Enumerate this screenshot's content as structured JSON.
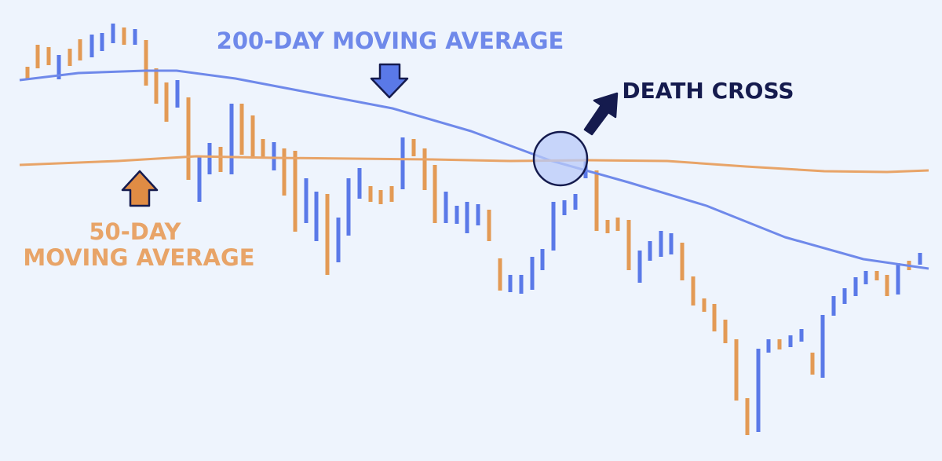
{
  "chart_data": {
    "type": "bar",
    "chart_style": "price bars with moving average lines",
    "title": "",
    "xlabel": "",
    "ylabel": "",
    "axes_visible": false,
    "grid": false,
    "y_range": [
      0,
      587
    ],
    "colors": {
      "up": "#5a79e8",
      "down": "#e39a55",
      "ma_200": "#6f89ea",
      "ma_50": "#e8a468",
      "death_label": "#151b4e",
      "circle_fill": "#b9cbf8",
      "arrow_200": "#5a79e8",
      "arrow_50": "#e08c44",
      "arrow_death": "#151b4e"
    },
    "bars": [
      {
        "x": 35,
        "high": 502,
        "low": 485,
        "dir": "down"
      },
      {
        "x": 48,
        "high": 530,
        "low": 500,
        "dir": "down"
      },
      {
        "x": 62,
        "high": 527,
        "low": 504,
        "dir": "down"
      },
      {
        "x": 75,
        "high": 517,
        "low": 486,
        "dir": "up"
      },
      {
        "x": 89,
        "high": 525,
        "low": 503,
        "dir": "down"
      },
      {
        "x": 102,
        "high": 537,
        "low": 510,
        "dir": "down"
      },
      {
        "x": 117,
        "high": 543,
        "low": 514,
        "dir": "up"
      },
      {
        "x": 130,
        "high": 545,
        "low": 522,
        "dir": "up"
      },
      {
        "x": 144,
        "high": 557,
        "low": 532,
        "dir": "up"
      },
      {
        "x": 158,
        "high": 552,
        "low": 530,
        "dir": "down"
      },
      {
        "x": 172,
        "high": 550,
        "low": 530,
        "dir": "up"
      },
      {
        "x": 186,
        "high": 536,
        "low": 478,
        "dir": "down"
      },
      {
        "x": 199,
        "high": 500,
        "low": 455,
        "dir": "down"
      },
      {
        "x": 212,
        "high": 482,
        "low": 432,
        "dir": "down"
      },
      {
        "x": 226,
        "high": 485,
        "low": 450,
        "dir": "up"
      },
      {
        "x": 240,
        "high": 463,
        "low": 358,
        "dir": "down"
      },
      {
        "x": 254,
        "high": 388,
        "low": 330,
        "dir": "up"
      },
      {
        "x": 267,
        "high": 405,
        "low": 365,
        "dir": "up"
      },
      {
        "x": 281,
        "high": 400,
        "low": 368,
        "dir": "down"
      },
      {
        "x": 295,
        "high": 455,
        "low": 365,
        "dir": "up"
      },
      {
        "x": 308,
        "high": 455,
        "low": 390,
        "dir": "down"
      },
      {
        "x": 322,
        "high": 440,
        "low": 385,
        "dir": "down"
      },
      {
        "x": 335,
        "high": 410,
        "low": 385,
        "dir": "down"
      },
      {
        "x": 349,
        "high": 406,
        "low": 370,
        "dir": "up"
      },
      {
        "x": 362,
        "high": 398,
        "low": 338,
        "dir": "down"
      },
      {
        "x": 376,
        "high": 395,
        "low": 292,
        "dir": "down"
      },
      {
        "x": 390,
        "high": 360,
        "low": 303,
        "dir": "up"
      },
      {
        "x": 403,
        "high": 343,
        "low": 280,
        "dir": "up"
      },
      {
        "x": 417,
        "high": 340,
        "low": 237,
        "dir": "down"
      },
      {
        "x": 431,
        "high": 310,
        "low": 253,
        "dir": "up"
      },
      {
        "x": 444,
        "high": 360,
        "low": 287,
        "dir": "up"
      },
      {
        "x": 458,
        "high": 373,
        "low": 334,
        "dir": "up"
      },
      {
        "x": 472,
        "high": 350,
        "low": 330,
        "dir": "down"
      },
      {
        "x": 485,
        "high": 345,
        "low": 327,
        "dir": "down"
      },
      {
        "x": 499,
        "high": 350,
        "low": 330,
        "dir": "down"
      },
      {
        "x": 513,
        "high": 412,
        "low": 346,
        "dir": "up"
      },
      {
        "x": 527,
        "high": 410,
        "low": 388,
        "dir": "down"
      },
      {
        "x": 541,
        "high": 398,
        "low": 345,
        "dir": "down"
      },
      {
        "x": 554,
        "high": 377,
        "low": 303,
        "dir": "down"
      },
      {
        "x": 568,
        "high": 343,
        "low": 303,
        "dir": "up"
      },
      {
        "x": 582,
        "high": 325,
        "low": 302,
        "dir": "up"
      },
      {
        "x": 595,
        "high": 330,
        "low": 290,
        "dir": "up"
      },
      {
        "x": 609,
        "high": 327,
        "low": 300,
        "dir": "up"
      },
      {
        "x": 623,
        "high": 320,
        "low": 280,
        "dir": "down"
      },
      {
        "x": 637,
        "high": 258,
        "low": 217,
        "dir": "down"
      },
      {
        "x": 650,
        "high": 237,
        "low": 215,
        "dir": "up"
      },
      {
        "x": 664,
        "high": 237,
        "low": 213,
        "dir": "up"
      },
      {
        "x": 678,
        "high": 260,
        "low": 218,
        "dir": "up"
      },
      {
        "x": 691,
        "high": 270,
        "low": 243,
        "dir": "up"
      },
      {
        "x": 705,
        "high": 330,
        "low": 268,
        "dir": "up"
      },
      {
        "x": 719,
        "high": 332,
        "low": 313,
        "dir": "up"
      },
      {
        "x": 733,
        "high": 340,
        "low": 320,
        "dir": "up"
      },
      {
        "x": 746,
        "high": 385,
        "low": 360,
        "dir": "up"
      },
      {
        "x": 760,
        "high": 370,
        "low": 293,
        "dir": "down"
      },
      {
        "x": 774,
        "high": 307,
        "low": 290,
        "dir": "down"
      },
      {
        "x": 787,
        "high": 310,
        "low": 293,
        "dir": "down"
      },
      {
        "x": 801,
        "high": 307,
        "low": 243,
        "dir": "down"
      },
      {
        "x": 815,
        "high": 268,
        "low": 227,
        "dir": "up"
      },
      {
        "x": 828,
        "high": 280,
        "low": 255,
        "dir": "up"
      },
      {
        "x": 842,
        "high": 293,
        "low": 260,
        "dir": "up"
      },
      {
        "x": 855,
        "high": 290,
        "low": 263,
        "dir": "up"
      },
      {
        "x": 869,
        "high": 278,
        "low": 230,
        "dir": "down"
      },
      {
        "x": 883,
        "high": 235,
        "low": 198,
        "dir": "down"
      },
      {
        "x": 897,
        "high": 207,
        "low": 190,
        "dir": "down"
      },
      {
        "x": 910,
        "high": 200,
        "low": 165,
        "dir": "down"
      },
      {
        "x": 924,
        "high": 180,
        "low": 150,
        "dir": "down"
      },
      {
        "x": 938,
        "high": 155,
        "low": 77,
        "dir": "down"
      },
      {
        "x": 952,
        "high": 80,
        "low": 33,
        "dir": "down"
      },
      {
        "x": 966,
        "high": 143,
        "low": 37,
        "dir": "up"
      },
      {
        "x": 979,
        "high": 155,
        "low": 138,
        "dir": "up"
      },
      {
        "x": 993,
        "high": 155,
        "low": 142,
        "dir": "down"
      },
      {
        "x": 1007,
        "high": 160,
        "low": 145,
        "dir": "up"
      },
      {
        "x": 1021,
        "high": 168,
        "low": 152,
        "dir": "up"
      },
      {
        "x": 1035,
        "high": 138,
        "low": 110,
        "dir": "down"
      },
      {
        "x": 1048,
        "high": 186,
        "low": 106,
        "dir": "up"
      },
      {
        "x": 1062,
        "high": 210,
        "low": 185,
        "dir": "up"
      },
      {
        "x": 1076,
        "high": 220,
        "low": 200,
        "dir": "up"
      },
      {
        "x": 1090,
        "high": 234,
        "low": 210,
        "dir": "up"
      },
      {
        "x": 1103,
        "high": 242,
        "low": 225,
        "dir": "up"
      },
      {
        "x": 1117,
        "high": 242,
        "low": 230,
        "dir": "down"
      },
      {
        "x": 1130,
        "high": 237,
        "low": 210,
        "dir": "down"
      },
      {
        "x": 1144,
        "high": 252,
        "low": 212,
        "dir": "up"
      },
      {
        "x": 1158,
        "high": 255,
        "low": 243,
        "dir": "down"
      },
      {
        "x": 1172,
        "high": 265,
        "low": 250,
        "dir": "up"
      }
    ],
    "series": [
      {
        "x": [
          25,
          100,
          185,
          225,
          300,
          400,
          500,
          600,
          700,
          800,
          900,
          1000,
          1100,
          1183
        ],
        "y": [
          485,
          494,
          497,
          497,
          487,
          468,
          449,
          420,
          383,
          355,
          325,
          285,
          257,
          245
        ]
      },
      {
        "x": [
          25,
          150,
          250,
          350,
          450,
          550,
          650,
          750,
          850,
          950,
          1050,
          1130,
          1183
        ],
        "y": [
          377,
          382,
          388,
          386,
          385,
          384,
          382,
          383,
          382,
          375,
          369,
          368,
          370
        ]
      }
    ],
    "annotations": [
      {
        "text": "200-DAY MOVING AVERAGE",
        "lines": [
          "200-DAY MOVING AVERAGE"
        ]
      },
      {
        "text": "DEATH CROSS",
        "lines": [
          "DEATH CROSS"
        ]
      },
      {
        "text": "50-DAY MOVING AVERAGE",
        "lines": [
          "50-DAY",
          "MOVING AVERAGE"
        ]
      }
    ],
    "cross_point": {
      "x": 714,
      "y": 385
    }
  }
}
